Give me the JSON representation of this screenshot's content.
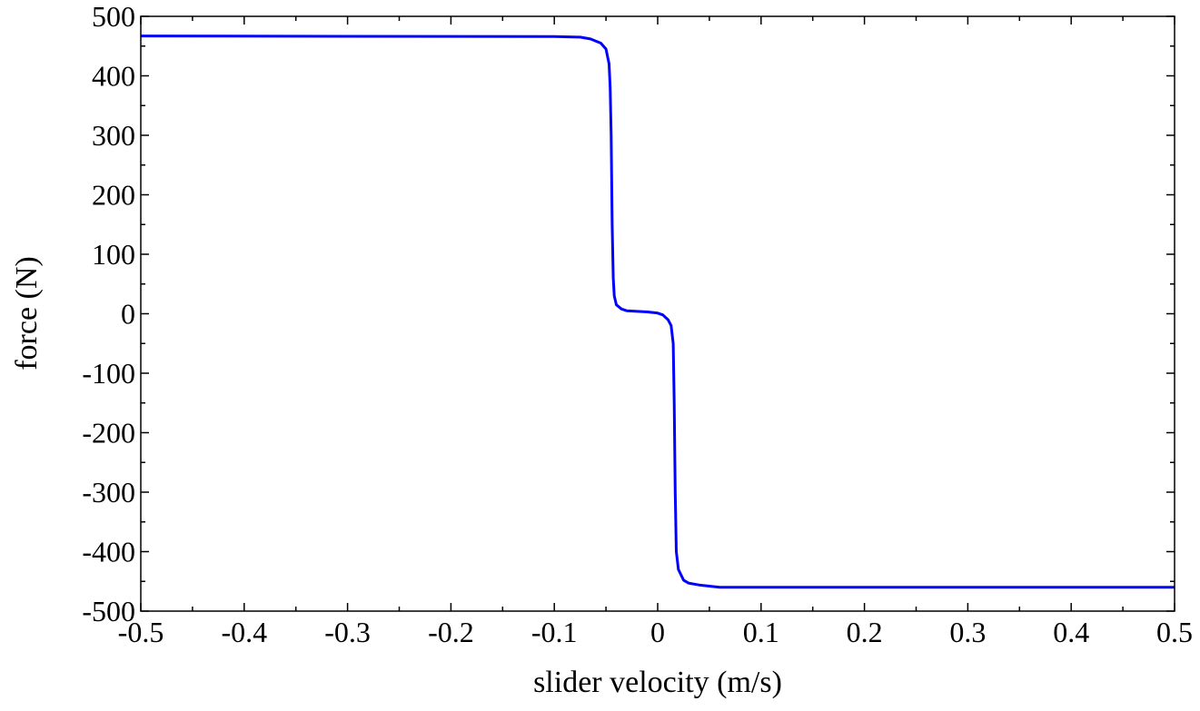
{
  "chart_data": {
    "type": "line",
    "title": "",
    "xlabel": "slider velocity (m/s)",
    "ylabel": "force (N)",
    "xlim": [
      -0.5,
      0.5
    ],
    "ylim": [
      -500,
      500
    ],
    "xticks": [
      -0.5,
      -0.4,
      -0.3,
      -0.2,
      -0.1,
      0,
      0.1,
      0.2,
      0.3,
      0.4,
      0.5
    ],
    "xtick_labels": [
      "-0.5",
      "-0.4",
      "-0.3",
      "-0.2",
      "-0.1",
      "0",
      "0.1",
      "0.2",
      "0.3",
      "0.4",
      "0.5"
    ],
    "yticks": [
      500,
      400,
      300,
      200,
      100,
      0,
      -100,
      -200,
      -300,
      -400,
      -500
    ],
    "ytick_labels": [
      "500",
      "400",
      "300",
      "200",
      "100",
      "0",
      "-100",
      "-200",
      "-300",
      "-400",
      "-500"
    ],
    "grid": false,
    "series": [
      {
        "name": "force",
        "color": "#0000ff",
        "x": [
          -0.5,
          -0.1,
          -0.075,
          -0.065,
          -0.055,
          -0.05,
          -0.047,
          -0.046,
          -0.045,
          -0.044,
          -0.043,
          -0.042,
          -0.04,
          -0.035,
          -0.03,
          -0.02,
          -0.01,
          0,
          0.005,
          0.01,
          0.013,
          0.015,
          0.016,
          0.017,
          0.018,
          0.02,
          0.025,
          0.03,
          0.04,
          0.06,
          0.5
        ],
        "y": [
          467,
          466,
          465,
          462,
          455,
          445,
          420,
          380,
          300,
          150,
          60,
          30,
          15,
          8,
          5,
          4,
          3,
          1,
          -2,
          -10,
          -20,
          -50,
          -150,
          -300,
          -400,
          -430,
          -448,
          -453,
          -456,
          -460,
          -460
        ]
      }
    ]
  }
}
